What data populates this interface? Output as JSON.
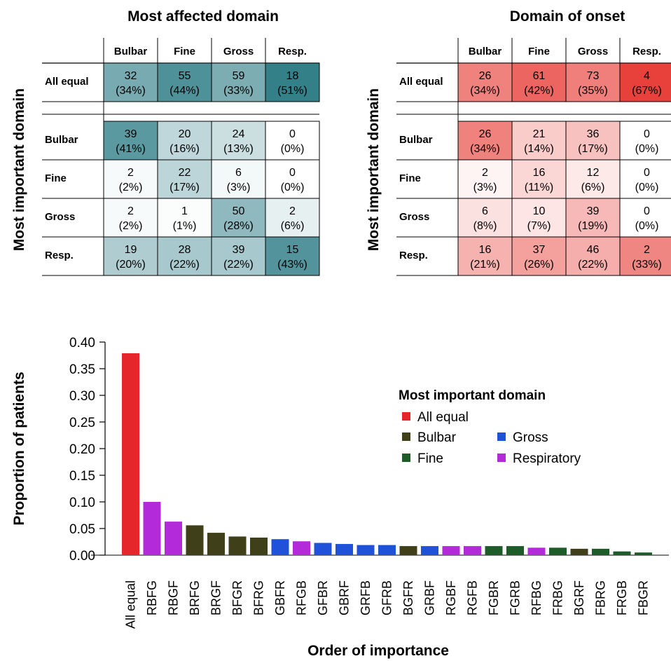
{
  "heatmaps": [
    {
      "title": "Most affected domain",
      "ylabel": "Most important domain",
      "columns": [
        "Bulbar",
        "Fine",
        "Gross",
        "Resp."
      ],
      "color_scale": [
        "#ffffff",
        "#2f7d87"
      ],
      "rows": [
        {
          "label": "All equal",
          "cells": [
            [
              "32",
              "(34%)"
            ],
            [
              "55",
              "(44%)"
            ],
            [
              "59",
              "(33%)"
            ],
            [
              "18",
              "(51%)"
            ]
          ],
          "pct": [
            34,
            44,
            33,
            51
          ]
        },
        {
          "label": "Bulbar",
          "cells": [
            [
              "39",
              "(41%)"
            ],
            [
              "20",
              "(16%)"
            ],
            [
              "24",
              "(13%)"
            ],
            [
              "0",
              "(0%)"
            ]
          ],
          "pct": [
            41,
            16,
            13,
            0
          ]
        },
        {
          "label": "Fine",
          "cells": [
            [
              "2",
              "(2%)"
            ],
            [
              "22",
              "(17%)"
            ],
            [
              "6",
              "(3%)"
            ],
            [
              "0",
              "(0%)"
            ]
          ],
          "pct": [
            2,
            17,
            3,
            0
          ]
        },
        {
          "label": "Gross",
          "cells": [
            [
              "2",
              "(2%)"
            ],
            [
              "1",
              "(1%)"
            ],
            [
              "50",
              "(28%)"
            ],
            [
              "2",
              "(6%)"
            ]
          ],
          "pct": [
            2,
            1,
            28,
            6
          ]
        },
        {
          "label": "Resp.",
          "cells": [
            [
              "19",
              "(20%)"
            ],
            [
              "28",
              "(22%)"
            ],
            [
              "39",
              "(22%)"
            ],
            [
              "15",
              "(43%)"
            ]
          ],
          "pct": [
            20,
            22,
            22,
            43
          ]
        }
      ]
    },
    {
      "title": "Domain of onset",
      "ylabel": "Most important domain",
      "columns": [
        "Bulbar",
        "Fine",
        "Gross",
        "Resp."
      ],
      "color_scale": [
        "#ffffff",
        "#e8403a"
      ],
      "rows": [
        {
          "label": "All equal",
          "cells": [
            [
              "26",
              "(34%)"
            ],
            [
              "61",
              "(42%)"
            ],
            [
              "73",
              "(35%)"
            ],
            [
              "4",
              "(67%)"
            ]
          ],
          "pct": [
            34,
            42,
            35,
            67
          ]
        },
        {
          "label": "Bulbar",
          "cells": [
            [
              "26",
              "(34%)"
            ],
            [
              "21",
              "(14%)"
            ],
            [
              "36",
              "(17%)"
            ],
            [
              "0",
              "(0%)"
            ]
          ],
          "pct": [
            34,
            14,
            17,
            0
          ]
        },
        {
          "label": "Fine",
          "cells": [
            [
              "2",
              "(3%)"
            ],
            [
              "16",
              "(11%)"
            ],
            [
              "12",
              "(6%)"
            ],
            [
              "0",
              "(0%)"
            ]
          ],
          "pct": [
            3,
            11,
            6,
            0
          ]
        },
        {
          "label": "Gross",
          "cells": [
            [
              "6",
              "(8%)"
            ],
            [
              "10",
              "(7%)"
            ],
            [
              "39",
              "(19%)"
            ],
            [
              "0",
              "(0%)"
            ]
          ],
          "pct": [
            8,
            7,
            19,
            0
          ]
        },
        {
          "label": "Resp.",
          "cells": [
            [
              "16",
              "(21%)"
            ],
            [
              "37",
              "(26%)"
            ],
            [
              "46",
              "(22%)"
            ],
            [
              "2",
              "(33%)"
            ]
          ],
          "pct": [
            21,
            26,
            22,
            33
          ]
        }
      ]
    }
  ],
  "chart_data": {
    "type": "bar",
    "xlabel": "Order of importance",
    "ylabel": "Proportion of patients",
    "ylim": [
      0,
      0.4
    ],
    "yticks": [
      "0.00",
      "0.05",
      "0.10",
      "0.15",
      "0.20",
      "0.25",
      "0.30",
      "0.35",
      "0.40"
    ],
    "categories": [
      "All equal",
      "RBFG",
      "RBGF",
      "BRFG",
      "BRGF",
      "BFGR",
      "BFRG",
      "GBFR",
      "RFGB",
      "GFBR",
      "GBRF",
      "GRFB",
      "GFRB",
      "BGFR",
      "GRBF",
      "RGBF",
      "RGFB",
      "FGBR",
      "FGRB",
      "RFBG",
      "FRBG",
      "BGRF",
      "FBRG",
      "FRGB",
      "FBGR"
    ],
    "values": [
      0.379,
      0.1,
      0.063,
      0.056,
      0.042,
      0.035,
      0.033,
      0.03,
      0.026,
      0.023,
      0.021,
      0.019,
      0.019,
      0.017,
      0.017,
      0.017,
      0.017,
      0.017,
      0.017,
      0.014,
      0.014,
      0.012,
      0.012,
      0.007,
      0.005
    ],
    "groups": [
      "All equal",
      "Respiratory",
      "Respiratory",
      "Bulbar",
      "Bulbar",
      "Bulbar",
      "Bulbar",
      "Gross",
      "Respiratory",
      "Gross",
      "Gross",
      "Gross",
      "Gross",
      "Bulbar",
      "Gross",
      "Respiratory",
      "Respiratory",
      "Fine",
      "Fine",
      "Respiratory",
      "Fine",
      "Bulbar",
      "Fine",
      "Fine",
      "Fine"
    ],
    "legend_title": "Most important domain",
    "legend": [
      {
        "name": "All equal",
        "color": "#e5262a"
      },
      {
        "name": "Bulbar",
        "color": "#3f3f1a"
      },
      {
        "name": "Gross",
        "color": "#1f52d9"
      },
      {
        "name": "Fine",
        "color": "#1d5c28"
      },
      {
        "name": "Respiratory",
        "color": "#b32ad9"
      }
    ]
  }
}
